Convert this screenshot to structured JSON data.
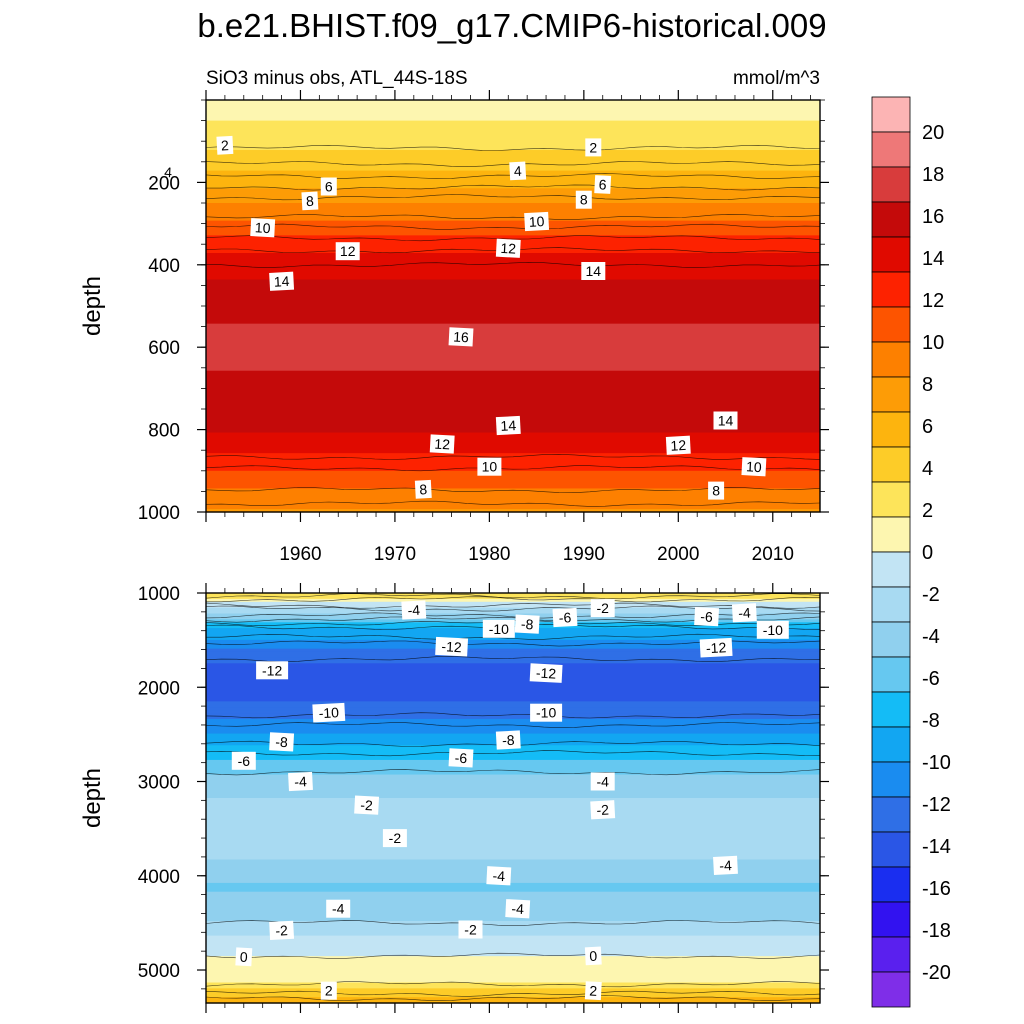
{
  "title": "b.e21.BHIST.f09_g17.CMIP6-historical.009",
  "subtitle_left": "SiO3 minus obs, ATL_44S-18S",
  "subtitle_right": "mmol/m^3",
  "colorbar": {
    "levels": [
      -20,
      -18,
      -16,
      -14,
      -12,
      -10,
      -8,
      -6,
      -4,
      -2,
      0,
      2,
      4,
      6,
      8,
      10,
      12,
      14,
      16,
      18,
      20
    ],
    "tick_labels": [
      "20",
      "18",
      "16",
      "14",
      "12",
      "10",
      "8",
      "6",
      "4",
      "2",
      "0",
      "-2",
      "-4",
      "-6",
      "-8",
      "-10",
      "-12",
      "-14",
      "-16",
      "-18",
      "-20"
    ],
    "colors": [
      "#7f2ee8",
      "#5a20ee",
      "#3212f0",
      "#1a2ef0",
      "#2a56e6",
      "#2f6fe6",
      "#1a8cf0",
      "#12a6f2",
      "#14bcf6",
      "#66c8f0",
      "#90d0ee",
      "#a8daf2",
      "#c2e4f4",
      "#fdf6b0",
      "#fde45a",
      "#fdcc28",
      "#fdb40e",
      "#fd9c06",
      "#fd8000",
      "#fd5400",
      "#fd2200",
      "#e00a00",
      "#c40a0a",
      "#d83c3c",
      "#ee7878",
      "#fcb4b4"
    ]
  },
  "chart_data": [
    {
      "type": "heatmap",
      "panel": "upper",
      "ylabel": "depth",
      "xlabel": "",
      "xlim": [
        1950,
        2015
      ],
      "ylim": [
        1000,
        0
      ],
      "x_ticks": [
        "1960",
        "1970",
        "1980",
        "1990",
        "2000",
        "2010"
      ],
      "y_ticks": [
        "200",
        "400",
        "600",
        "800",
        "1000"
      ],
      "contour_interval": 1,
      "profile": {
        "depth": [
          0,
          20,
          70,
          140,
          200,
          260,
          320,
          380,
          440,
          500,
          560,
          600,
          640,
          700,
          760,
          800,
          840,
          880,
          920,
          960,
          1000
        ],
        "value": [
          0,
          1,
          2,
          3.5,
          5.5,
          8,
          10.5,
          12.5,
          14,
          15,
          15.5,
          15.8,
          15.5,
          15,
          14.5,
          14,
          13,
          11.5,
          10,
          8.5,
          7.5
        ]
      },
      "contour_labels": [
        {
          "text": "2",
          "x": 1952,
          "y": 110
        },
        {
          "text": "2",
          "x": 1991,
          "y": 115
        },
        {
          "text": "4",
          "x": 1946,
          "y": 175
        },
        {
          "text": "4",
          "x": 1983,
          "y": 172
        },
        {
          "text": "6",
          "x": 1963,
          "y": 210
        },
        {
          "text": "6",
          "x": 1992,
          "y": 205
        },
        {
          "text": "8",
          "x": 1961,
          "y": 245
        },
        {
          "text": "8",
          "x": 1990,
          "y": 242
        },
        {
          "text": "10",
          "x": 1956,
          "y": 310
        },
        {
          "text": "10",
          "x": 1985,
          "y": 295
        },
        {
          "text": "12",
          "x": 1965,
          "y": 367
        },
        {
          "text": "12",
          "x": 1982,
          "y": 360
        },
        {
          "text": "14",
          "x": 1958,
          "y": 440
        },
        {
          "text": "14",
          "x": 1991,
          "y": 415
        },
        {
          "text": "16",
          "x": 1977,
          "y": 575
        },
        {
          "text": "14",
          "x": 1982,
          "y": 790
        },
        {
          "text": "14",
          "x": 2005,
          "y": 778
        },
        {
          "text": "12",
          "x": 1975,
          "y": 835
        },
        {
          "text": "12",
          "x": 2000,
          "y": 838
        },
        {
          "text": "10",
          "x": 1980,
          "y": 890
        },
        {
          "text": "10",
          "x": 2008,
          "y": 890
        },
        {
          "text": "8",
          "x": 1973,
          "y": 945
        },
        {
          "text": "8",
          "x": 2004,
          "y": 948
        }
      ]
    },
    {
      "type": "heatmap",
      "panel": "lower",
      "ylabel": "depth",
      "xlabel": "",
      "xlim": [
        1950,
        2015
      ],
      "ylim": [
        5350,
        1000
      ],
      "x_ticks": [],
      "y_ticks": [
        "1000",
        "2000",
        "3000",
        "4000",
        "5000"
      ],
      "contour_interval": 1,
      "profile": {
        "depth": [
          1000,
          1100,
          1200,
          1400,
          1600,
          1800,
          2000,
          2200,
          2500,
          2800,
          3000,
          3200,
          3400,
          3600,
          3800,
          4000,
          4100,
          4200,
          4400,
          4600,
          4700,
          4800,
          4900,
          5100,
          5200,
          5350
        ],
        "value": [
          3,
          0,
          -3,
          -8,
          -11,
          -13,
          -13,
          -12,
          -9,
          -6,
          -4,
          -3,
          -2.5,
          -2.5,
          -3,
          -4,
          -5,
          -4.5,
          -4,
          -2,
          -1,
          -0.5,
          0.5,
          1,
          3,
          6
        ]
      },
      "contour_labels": [
        {
          "text": "-4",
          "x": 1972,
          "y": 1180
        },
        {
          "text": "-10",
          "x": 1981,
          "y": 1380
        },
        {
          "text": "-8",
          "x": 1984,
          "y": 1330
        },
        {
          "text": "-6",
          "x": 1988,
          "y": 1260
        },
        {
          "text": "-2",
          "x": 1992,
          "y": 1160
        },
        {
          "text": "-6",
          "x": 2003,
          "y": 1250
        },
        {
          "text": "-4",
          "x": 2007,
          "y": 1210
        },
        {
          "text": "-10",
          "x": 2010,
          "y": 1390
        },
        {
          "text": "-12",
          "x": 1976,
          "y": 1570
        },
        {
          "text": "-12",
          "x": 2004,
          "y": 1580
        },
        {
          "text": "-12",
          "x": 1957,
          "y": 1820
        },
        {
          "text": "-12",
          "x": 1986,
          "y": 1850
        },
        {
          "text": "-10",
          "x": 1963,
          "y": 2270
        },
        {
          "text": "-10",
          "x": 1986,
          "y": 2270
        },
        {
          "text": "-8",
          "x": 1958,
          "y": 2580
        },
        {
          "text": "-8",
          "x": 1982,
          "y": 2560
        },
        {
          "text": "-6",
          "x": 1954,
          "y": 2780
        },
        {
          "text": "-6",
          "x": 1977,
          "y": 2750
        },
        {
          "text": "-4",
          "x": 1960,
          "y": 3000
        },
        {
          "text": "-4",
          "x": 1992,
          "y": 3000
        },
        {
          "text": "-2",
          "x": 1967,
          "y": 3250
        },
        {
          "text": "-2",
          "x": 1992,
          "y": 3300
        },
        {
          "text": "-2",
          "x": 1970,
          "y": 3600
        },
        {
          "text": "-4",
          "x": 1981,
          "y": 4000
        },
        {
          "text": "-4",
          "x": 2005,
          "y": 3890
        },
        {
          "text": "-4",
          "x": 1964,
          "y": 4350
        },
        {
          "text": "-4",
          "x": 1983,
          "y": 4350
        },
        {
          "text": "-2",
          "x": 1958,
          "y": 4580
        },
        {
          "text": "-2",
          "x": 1978,
          "y": 4570
        },
        {
          "text": "0",
          "x": 1954,
          "y": 4860
        },
        {
          "text": "0",
          "x": 1991,
          "y": 4850
        },
        {
          "text": "2",
          "x": 1963,
          "y": 5220
        },
        {
          "text": "2",
          "x": 1991,
          "y": 5220
        }
      ]
    }
  ]
}
